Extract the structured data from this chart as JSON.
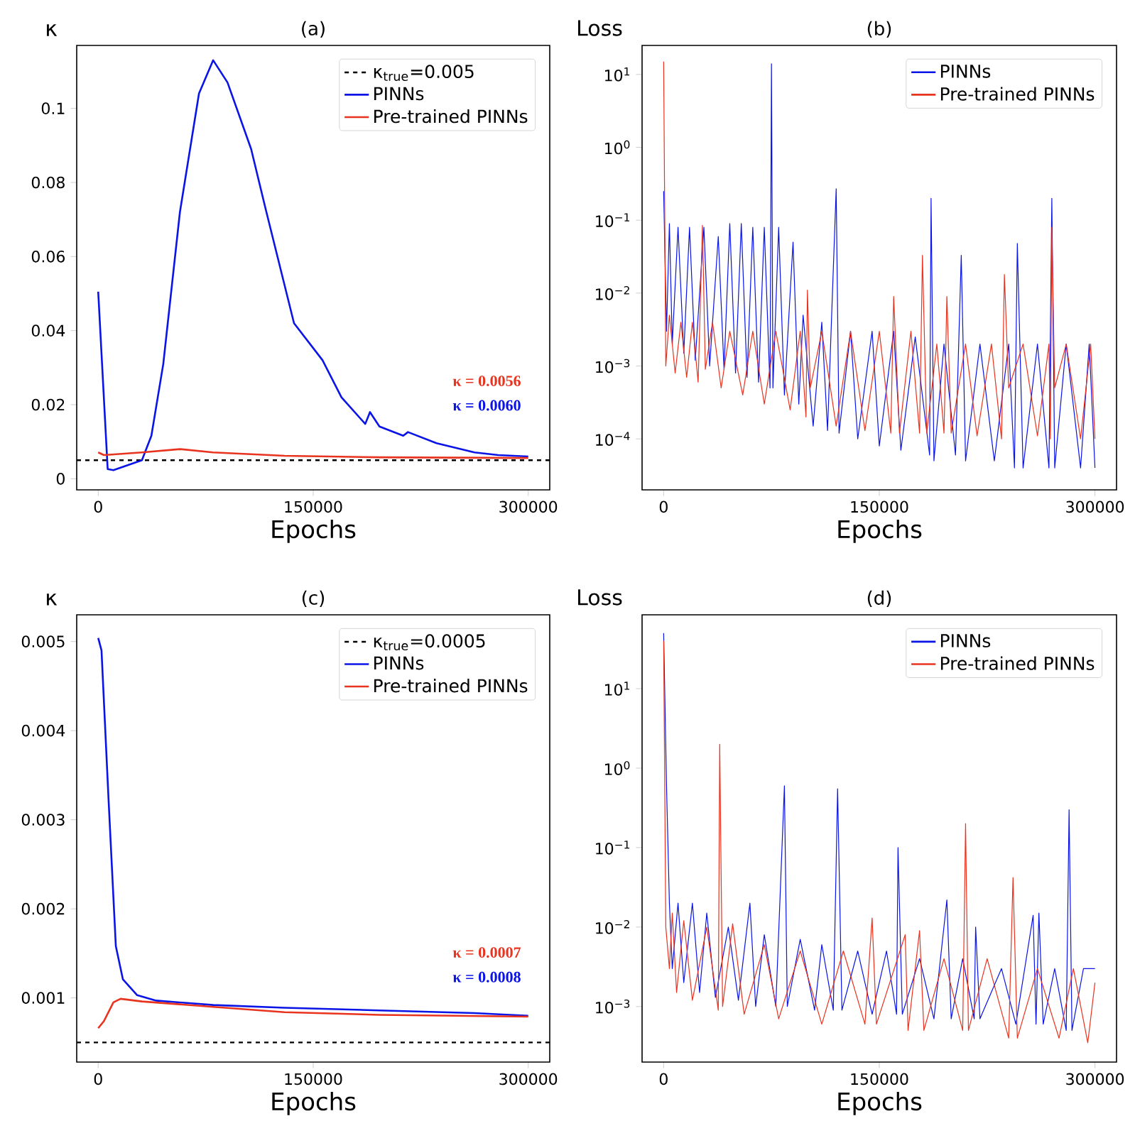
{
  "chart_data": [
    {
      "type": "line",
      "title": "(a)",
      "xlabel": "Epochs",
      "ylabel": "κ",
      "legend": "top right",
      "xlim": [
        -15000,
        315000
      ],
      "xticks": [
        0,
        150000,
        300000
      ],
      "ylim": [
        -0.003,
        0.117
      ],
      "yticks": [
        0,
        0.02,
        0.04,
        0.06,
        0.08,
        0.1
      ],
      "ref_lines": [
        {
          "axis": "y",
          "value": 0.005,
          "label": "κ$_{true}$=0.005",
          "color": "#000000",
          "line_style": "dashed"
        }
      ],
      "annotations": [
        "κ = 0.0056",
        "κ = 0.0060"
      ],
      "series": [
        {
          "name": "PINNs",
          "color": "#0a14e6",
          "x": [
            0,
            6600,
            10600,
            30500,
            37100,
            45400,
            57000,
            70300,
            80200,
            90200,
            106700,
            116700,
            136600,
            156500,
            169700,
            186300,
            189600,
            196200,
            212800,
            216100,
            236000,
            262500,
            279100,
            300000
          ],
          "values": [
            0.0505,
            0.0026,
            0.0023,
            0.005,
            0.0116,
            0.031,
            0.072,
            0.104,
            0.113,
            0.107,
            0.089,
            0.073,
            0.042,
            0.032,
            0.022,
            0.0148,
            0.018,
            0.0141,
            0.0116,
            0.0126,
            0.0096,
            0.0071,
            0.0064,
            0.006
          ]
        },
        {
          "name": "Pre-trained PINNs",
          "color": "#e8331f",
          "x": [
            0,
            4000,
            30500,
            57000,
            80200,
            130000,
            196000,
            300000
          ],
          "values": [
            0.0071,
            0.0064,
            0.0071,
            0.008,
            0.0071,
            0.0062,
            0.0058,
            0.0056
          ]
        }
      ]
    },
    {
      "type": "line",
      "title": "(b)",
      "xlabel": "Epochs",
      "ylabel": "Loss",
      "legend": "top right",
      "log": "y",
      "xlim": [
        -15000,
        315000
      ],
      "xticks": [
        0,
        150000,
        300000
      ],
      "ylim": [
        2e-05,
        25
      ],
      "yticks": [
        {
          "value": 10,
          "label": "10$^{1}$"
        },
        {
          "value": 1,
          "label": "10$^{0}$"
        },
        {
          "value": 0.1,
          "label": "10$^{−1}$"
        },
        {
          "value": 0.01,
          "label": "10$^{−2}$"
        },
        {
          "value": 0.001,
          "label": "10$^{−3}$"
        },
        {
          "value": 0.0001,
          "label": "10$^{−4}$"
        }
      ],
      "series": [
        {
          "name": "PINNs",
          "color": "#0a14e6",
          "x": [
            0,
            2000,
            4000,
            6000,
            10000,
            14000,
            18000,
            22000,
            28000,
            32000,
            38000,
            42000,
            46000,
            50000,
            54000,
            58000,
            62000,
            66000,
            70000,
            74000,
            75000,
            76000,
            80000,
            84000,
            90000,
            94000,
            97000,
            104000,
            110000,
            114000,
            120000,
            122000,
            130000,
            135000,
            145000,
            150000,
            160000,
            165000,
            175000,
            185000,
            186000,
            188000,
            195000,
            203000,
            207000,
            210000,
            220000,
            230000,
            240000,
            244000,
            246000,
            250000,
            260000,
            268000,
            270000,
            272000,
            280000,
            290000,
            296000,
            300000
          ],
          "values": [
            0.25,
            0.003,
            0.09,
            0.002,
            0.08,
            0.0015,
            0.08,
            0.0012,
            0.08,
            0.001,
            0.06,
            0.0009,
            0.09,
            0.0008,
            0.09,
            0.0007,
            0.08,
            0.0006,
            0.08,
            0.0005,
            14,
            0.0005,
            0.08,
            0.0004,
            0.05,
            0.0003,
            0.005,
            0.00015,
            0.004,
            0.00013,
            0.27,
            0.00012,
            0.003,
            0.0001,
            0.003,
            8e-05,
            0.003,
            7e-05,
            0.0025,
            6e-05,
            0.2,
            5e-05,
            0.002,
            6e-05,
            0.033,
            5e-05,
            0.002,
            5e-05,
            0.002,
            4e-05,
            0.048,
            4e-05,
            0.002,
            4e-05,
            0.2,
            4e-05,
            0.002,
            4e-05,
            0.002,
            4e-05
          ]
        },
        {
          "name": "Pre-trained PINNs",
          "color": "#e8331f",
          "x": [
            0,
            1500,
            4000,
            8000,
            12000,
            16000,
            20000,
            24000,
            27000,
            29000,
            34000,
            40000,
            46000,
            55000,
            62000,
            70000,
            78000,
            88000,
            95000,
            99000,
            100000,
            102000,
            110000,
            120000,
            130000,
            140000,
            150000,
            158000,
            160000,
            164000,
            172000,
            178000,
            180000,
            183000,
            190000,
            195000,
            197000,
            200000,
            210000,
            218000,
            228000,
            235000,
            237000,
            240000,
            250000,
            260000,
            268000,
            269000,
            270000,
            272000,
            280000,
            290000,
            297000,
            300000
          ],
          "values": [
            15,
            0.001,
            0.005,
            0.0008,
            0.004,
            0.0007,
            0.004,
            0.0006,
            0.085,
            0.0009,
            0.004,
            0.0005,
            0.003,
            0.0004,
            0.003,
            0.0003,
            0.003,
            0.00025,
            0.003,
            0.0002,
            0.011,
            0.0005,
            0.003,
            0.00015,
            0.003,
            0.00013,
            0.003,
            0.00012,
            0.009,
            0.00012,
            0.003,
            0.00012,
            0.033,
            0.00012,
            0.002,
            0.00012,
            0.009,
            0.00012,
            0.002,
            0.00011,
            0.002,
            0.0001,
            0.018,
            0.0005,
            0.002,
            0.00011,
            0.002,
            0.0001,
            0.08,
            0.0005,
            0.002,
            0.0001,
            0.002,
            0.0001
          ]
        }
      ]
    },
    {
      "type": "line",
      "title": "(c)",
      "xlabel": "Epochs",
      "ylabel": "κ",
      "legend": "top right",
      "xlim": [
        -15000,
        315000
      ],
      "xticks": [
        0,
        150000,
        300000
      ],
      "ylim": [
        0.00028,
        0.0053
      ],
      "yticks": [
        0.001,
        0.002,
        0.003,
        0.004,
        0.005
      ],
      "ref_lines": [
        {
          "axis": "y",
          "value": 0.0005,
          "label": "κ$_{true}$=0.0005",
          "color": "#000000",
          "line_style": "dashed"
        }
      ],
      "annotations": [
        "κ = 0.0007",
        "κ = 0.0008"
      ],
      "series": [
        {
          "name": "PINNs",
          "color": "#0a14e6",
          "x": [
            0,
            2300,
            7300,
            12300,
            17200,
            27200,
            40400,
            80200,
            130000,
            196000,
            262500,
            300000
          ],
          "values": [
            0.00504,
            0.0049,
            0.0032,
            0.00158,
            0.00121,
            0.00103,
            0.00097,
            0.00092,
            0.00089,
            0.00086,
            0.00083,
            0.0008
          ]
        },
        {
          "name": "Pre-trained PINNs",
          "color": "#e8331f",
          "x": [
            0,
            4000,
            10600,
            15600,
            30500,
            80200,
            130000,
            196000,
            300000
          ],
          "values": [
            0.00066,
            0.00074,
            0.00095,
            0.00099,
            0.00096,
            0.0009,
            0.00084,
            0.00081,
            0.00079
          ]
        }
      ]
    },
    {
      "type": "line",
      "title": "(d)",
      "xlabel": "Epochs",
      "ylabel": "Loss",
      "legend": "top right",
      "log": "y",
      "xlim": [
        -15000,
        315000
      ],
      "xticks": [
        0,
        150000,
        300000
      ],
      "ylim": [
        0.0002,
        85
      ],
      "yticks": [
        {
          "value": 10,
          "label": "10$^{1}$"
        },
        {
          "value": 1,
          "label": "10$^{0}$"
        },
        {
          "value": 0.1,
          "label": "10$^{−1}$"
        },
        {
          "value": 0.01,
          "label": "10$^{−2}$"
        },
        {
          "value": 0.001,
          "label": "10$^{−3}$"
        }
      ],
      "series": [
        {
          "name": "PINNs",
          "color": "#0a14e6",
          "x": [
            0,
            2000,
            4000,
            6000,
            10000,
            14000,
            20000,
            25000,
            30000,
            36000,
            45000,
            52000,
            60000,
            64000,
            70000,
            78000,
            84000,
            86000,
            95000,
            105000,
            110000,
            118000,
            121000,
            124000,
            135000,
            145000,
            155000,
            162000,
            163000,
            166000,
            178000,
            188000,
            197000,
            200000,
            208000,
            216000,
            217000,
            220000,
            235000,
            245000,
            257000,
            259000,
            261000,
            264000,
            272000,
            280000,
            282000,
            284000,
            292000,
            300000
          ],
          "values": [
            50,
            0.6,
            0.02,
            0.003,
            0.02,
            0.002,
            0.02,
            0.0015,
            0.015,
            0.0013,
            0.01,
            0.0012,
            0.02,
            0.001,
            0.008,
            0.001,
            0.6,
            0.001,
            0.007,
            0.0009,
            0.006,
            0.0009,
            0.55,
            0.0009,
            0.005,
            0.0008,
            0.005,
            0.0008,
            0.1,
            0.0008,
            0.004,
            0.0007,
            0.022,
            0.0007,
            0.004,
            0.0007,
            0.01,
            0.0007,
            0.003,
            0.0006,
            0.014,
            0.0006,
            0.015,
            0.0006,
            0.003,
            0.0005,
            0.3,
            0.0005,
            0.003,
            0.003
          ]
        },
        {
          "name": "Pre-trained PINNs",
          "color": "#e8331f",
          "x": [
            0,
            1500,
            4000,
            6000,
            9000,
            14000,
            20000,
            30000,
            38000,
            39000,
            41000,
            48000,
            56000,
            70000,
            80000,
            95000,
            110000,
            125000,
            140000,
            145000,
            148000,
            168000,
            170000,
            178000,
            181000,
            195000,
            208000,
            210000,
            212000,
            225000,
            240000,
            243000,
            246000,
            260000,
            275000,
            285000,
            295000,
            300000
          ],
          "values": [
            40,
            0.01,
            0.003,
            0.015,
            0.0015,
            0.012,
            0.0012,
            0.01,
            0.0009,
            2,
            0.001,
            0.011,
            0.0008,
            0.006,
            0.0007,
            0.005,
            0.0006,
            0.005,
            0.0006,
            0.013,
            0.0006,
            0.008,
            0.0005,
            0.009,
            0.0005,
            0.004,
            0.0005,
            0.2,
            0.0005,
            0.004,
            0.0004,
            0.042,
            0.0004,
            0.003,
            0.0004,
            0.003,
            0.00035,
            0.002
          ]
        }
      ]
    }
  ]
}
